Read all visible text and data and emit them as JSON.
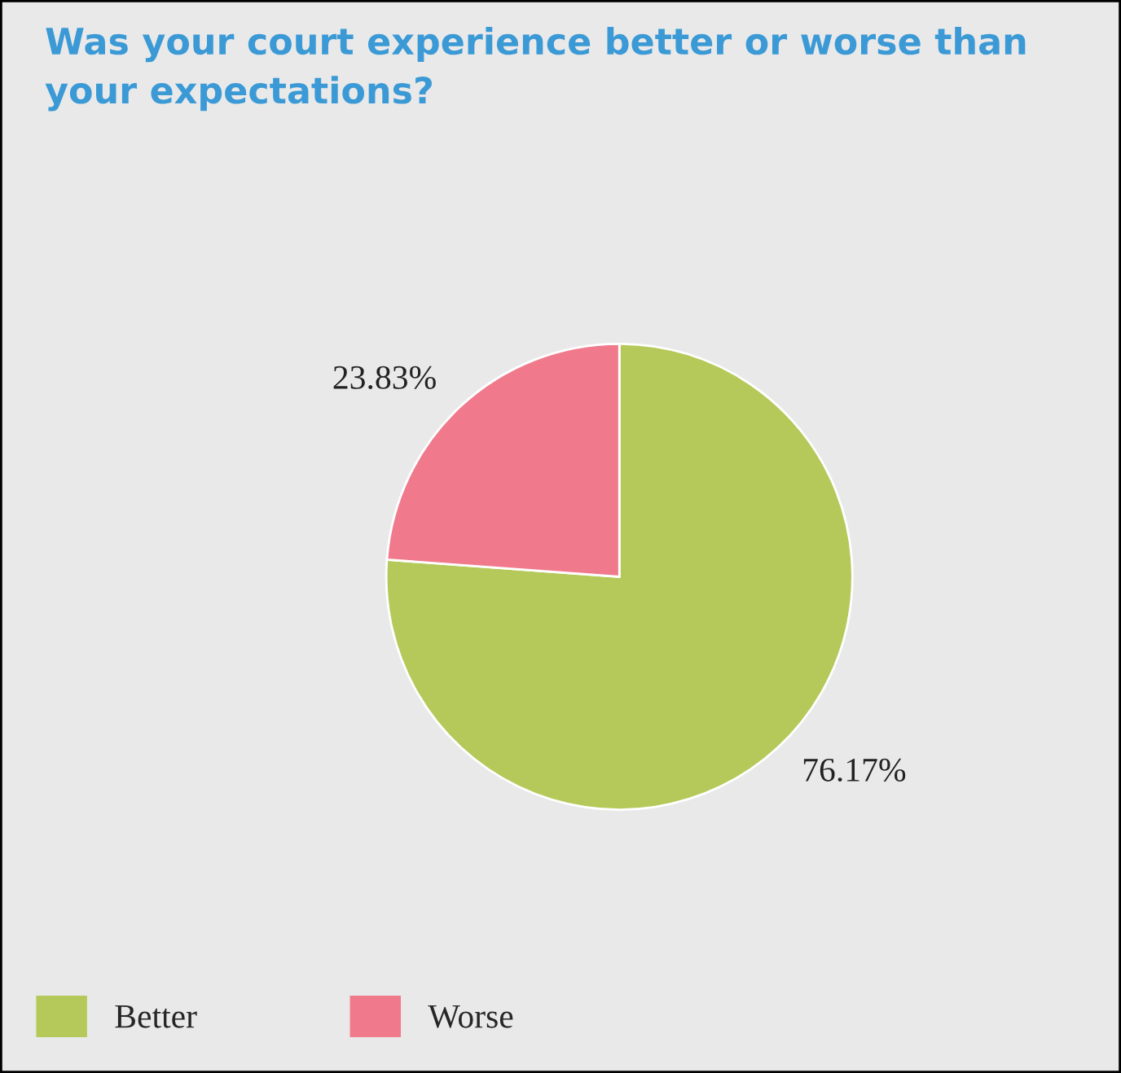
{
  "chart_data": {
    "type": "pie",
    "title": "Was your court experience better or worse than your expectations?",
    "categories": [
      "Better",
      "Worse"
    ],
    "values": [
      76.17,
      23.83
    ],
    "colors": [
      "#b5c95a",
      "#f07a8c"
    ],
    "value_labels": [
      "76.17%",
      "23.83%"
    ],
    "legend": "bottom left"
  }
}
